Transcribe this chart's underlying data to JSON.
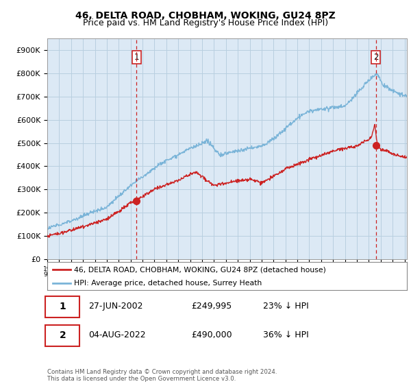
{
  "title": "46, DELTA ROAD, CHOBHAM, WOKING, GU24 8PZ",
  "subtitle": "Price paid vs. HM Land Registry's House Price Index (HPI)",
  "ylabel_ticks": [
    "£0",
    "£100K",
    "£200K",
    "£300K",
    "£400K",
    "£500K",
    "£600K",
    "£700K",
    "£800K",
    "£900K"
  ],
  "ytick_values": [
    0,
    100000,
    200000,
    300000,
    400000,
    500000,
    600000,
    700000,
    800000,
    900000
  ],
  "ylim": [
    0,
    950000
  ],
  "xlim_start": 1995.0,
  "xlim_end": 2025.2,
  "hpi_color": "#7ab4d8",
  "price_color": "#cc2222",
  "marker1_date": 2002.49,
  "marker1_price": 249995,
  "marker2_date": 2022.59,
  "marker2_price": 490000,
  "legend_label1": "46, DELTA ROAD, CHOBHAM, WOKING, GU24 8PZ (detached house)",
  "legend_label2": "HPI: Average price, detached house, Surrey Heath",
  "note1_num": "1",
  "note1_date": "27-JUN-2002",
  "note1_price": "£249,995",
  "note1_hpi": "23% ↓ HPI",
  "note2_num": "2",
  "note2_date": "04-AUG-2022",
  "note2_price": "£490,000",
  "note2_hpi": "36% ↓ HPI",
  "footer": "Contains HM Land Registry data © Crown copyright and database right 2024.\nThis data is licensed under the Open Government Licence v3.0.",
  "background_color": "#ffffff",
  "plot_bg_color": "#dce9f5",
  "grid_color": "#b8cfe0",
  "title_fontsize": 10,
  "subtitle_fontsize": 9
}
